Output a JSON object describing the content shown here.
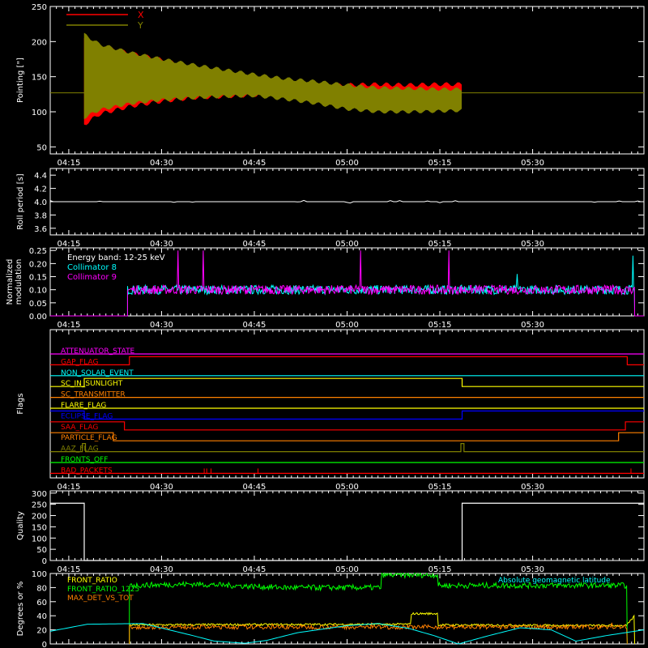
{
  "colors": {
    "background": "#000000",
    "axis": "#ffffff",
    "red": "#ff0000",
    "olive": "#808000",
    "cyan": "#00ffff",
    "magenta": "#ff00ff",
    "green": "#00ff00",
    "orange": "#ff8000",
    "yellow": "#ffff00",
    "blue": "#0000ff",
    "white": "#ffffff"
  },
  "time_axis": {
    "start_minutes": 252,
    "end_minutes": 348,
    "ticks": [
      {
        "m": 255,
        "label": "04:15"
      },
      {
        "m": 270,
        "label": "04:30"
      },
      {
        "m": 285,
        "label": "04:45"
      },
      {
        "m": 300,
        "label": "05:00"
      },
      {
        "m": 315,
        "label": "05:15"
      },
      {
        "m": 330,
        "label": "05:30"
      }
    ]
  },
  "chart_data": [
    {
      "id": "pointing",
      "type": "area",
      "ylabel": "Pointing [\"]",
      "ylim": [
        40,
        250
      ],
      "yticks": [
        "50",
        "100",
        "150",
        "200",
        "250"
      ],
      "ytick_values": [
        50,
        100,
        150,
        200,
        250
      ],
      "baseline": 127,
      "legend": [
        {
          "name": "X",
          "color": "red"
        },
        {
          "name": "Y",
          "color": "olive"
        }
      ],
      "series": [
        {
          "name": "X",
          "color": "red",
          "x": [
            257.5,
            260,
            265,
            270,
            275,
            280,
            285,
            290,
            295,
            300,
            305,
            310,
            315,
            318.5
          ],
          "upper": [
            205,
            193,
            183,
            174,
            163,
            153,
            143,
            137,
            136,
            138,
            139,
            138,
            139,
            139
          ],
          "lower": [
            82,
            97,
            108,
            115,
            120,
            122,
            124,
            125,
            124,
            122,
            122,
            122,
            122,
            122
          ]
        },
        {
          "name": "Y",
          "color": "olive",
          "x": [
            257.5,
            260,
            265,
            270,
            275,
            280,
            285,
            290,
            295,
            300,
            305,
            310,
            315,
            318.5
          ],
          "upper": [
            210,
            196,
            184,
            175,
            167,
            160,
            153,
            147,
            143,
            138,
            134,
            133,
            132,
            132
          ],
          "lower": [
            92,
            103,
            112,
            117,
            120,
            122,
            123,
            118,
            112,
            104,
            100,
            100,
            101,
            102
          ]
        }
      ]
    },
    {
      "id": "roll",
      "type": "line",
      "ylabel": "Roll period [s]",
      "ylim": [
        3.5,
        4.5
      ],
      "yticks": [
        "3.6",
        "3.8",
        "4.0",
        "4.2",
        "4.4"
      ],
      "ytick_values": [
        3.6,
        3.8,
        4.0,
        4.2,
        4.4
      ],
      "series": [
        {
          "color": "white",
          "x": [
            252,
            348
          ],
          "y": [
            4.0,
            4.0
          ]
        }
      ]
    },
    {
      "id": "modulation",
      "type": "line",
      "ylabel": [
        "Normalized",
        "modulation"
      ],
      "ylim": [
        0,
        0.26
      ],
      "yticks": [
        "0.00",
        "0.05",
        "0.10",
        "0.15",
        "0.20",
        "0.25"
      ],
      "ytick_values": [
        0,
        0.05,
        0.1,
        0.15,
        0.2,
        0.25
      ],
      "annotation": "Energy band: 12-25 keV",
      "series": [
        {
          "name": "Collimator 8",
          "color": "cyan",
          "x_start": 264.5,
          "x_end": 346.5,
          "mean": 0.1,
          "spikes": [
            {
              "x": 327.5,
              "y": 0.16
            },
            {
              "x": 346.2,
              "y": 0.23
            }
          ]
        },
        {
          "name": "Collimator 9",
          "color": "magenta",
          "x_start": 264.5,
          "x_end": 346.5,
          "mean": 0.1,
          "spikes": [
            {
              "x": 272.7,
              "y": 0.25
            },
            {
              "x": 276.8,
              "y": 0.25
            },
            {
              "x": 302.2,
              "y": 0.25
            },
            {
              "x": 316.5,
              "y": 0.25
            }
          ]
        }
      ]
    },
    {
      "id": "flags",
      "type": "line",
      "ylabel": "Flags",
      "series": [
        {
          "name": "ATTENUATOR_STATE",
          "color": "magenta",
          "levels": [
            [
              252,
              0
            ],
            [
              348,
              0
            ]
          ]
        },
        {
          "name": "GAP_FLAG",
          "color": "red",
          "levels": [
            [
              252,
              0
            ],
            [
              264.8,
              1
            ],
            [
              345.3,
              0
            ]
          ]
        },
        {
          "name": "NON_SOLAR_EVENT",
          "color": "cyan",
          "levels": [
            [
              252,
              0
            ],
            [
              348,
              0
            ]
          ]
        },
        {
          "name": "SC_IN_SUNLIGHT",
          "color": "yellow",
          "levels": [
            [
              252,
              0
            ],
            [
              257.5,
              1
            ],
            [
              318.6,
              0
            ]
          ]
        },
        {
          "name": "SC_TRANSMITTER",
          "color": "orange",
          "levels": [
            [
              252,
              0
            ],
            [
              348,
              0
            ]
          ]
        },
        {
          "name": "FLARE_FLAG",
          "color": "yellow",
          "levels": [
            [
              252,
              0
            ],
            [
              348,
              0
            ]
          ]
        },
        {
          "name": "ECLIPSE_FLAG",
          "color": "blue",
          "levels": [
            [
              252,
              1
            ],
            [
              257.5,
              0
            ],
            [
              318.6,
              1
            ]
          ]
        },
        {
          "name": "SAA_FLAG",
          "color": "red",
          "levels": [
            [
              252,
              1
            ],
            [
              264.0,
              0
            ],
            [
              345.0,
              1
            ]
          ]
        },
        {
          "name": "PARTICLE_FLAG",
          "color": "orange",
          "levels": [
            [
              252,
              1
            ],
            [
              262.2,
              0
            ],
            [
              343.9,
              1
            ]
          ]
        },
        {
          "name": "AAZ_FLAG",
          "color": "olive",
          "levels": [
            [
              252,
              0
            ],
            [
              257.2,
              1
            ],
            [
              257.7,
              0
            ],
            [
              318.4,
              1
            ],
            [
              318.9,
              0
            ]
          ]
        },
        {
          "name": "FRONTS_OFF",
          "color": "green",
          "levels": [
            [
              252,
              0
            ],
            [
              348,
              0
            ]
          ]
        },
        {
          "name": "BAD_PACKETS",
          "color": "red",
          "levels": [
            [
              252,
              0
            ],
            [
              348,
              0
            ]
          ],
          "spikes": [
            276.9,
            277.3,
            278.0,
            285.6,
            345.9
          ]
        }
      ]
    },
    {
      "id": "quality",
      "type": "line",
      "ylabel": "Quality",
      "ylim": [
        0,
        310
      ],
      "yticks": [
        "0",
        "50",
        "100",
        "150",
        "200",
        "250",
        "300"
      ],
      "ytick_values": [
        0,
        50,
        100,
        150,
        200,
        250,
        300
      ],
      "series": [
        {
          "color": "white",
          "levels": [
            [
              252,
              255
            ],
            [
              257.5,
              0
            ],
            [
              318.6,
              255
            ]
          ]
        }
      ]
    },
    {
      "id": "ratios",
      "type": "line",
      "ylabel": "Degrees or %",
      "ylim": [
        0,
        100
      ],
      "yticks": [
        "0",
        "20",
        "40",
        "60",
        "80",
        "100"
      ],
      "ytick_values": [
        0,
        20,
        40,
        60,
        80,
        100
      ],
      "series": [
        {
          "name": "FRONT_RATIO",
          "color": "yellow",
          "x": [
            264.8,
            310.3,
            310.3,
            314.6,
            314.6,
            345.2,
            346.5
          ],
          "y": [
            27,
            28,
            43,
            43,
            27,
            26,
            40
          ]
        },
        {
          "name": "FRONT_RATIO_1225",
          "color": "green",
          "x": [
            264.8,
            275,
            290,
            305.5,
            305.5,
            314.6,
            314.6,
            330,
            345.3
          ],
          "y": [
            83,
            85,
            80,
            80,
            98,
            98,
            83,
            83,
            83
          ]
        },
        {
          "name": "MAX_DET_VS_TOT",
          "color": "orange",
          "x": [
            264.8,
            345.3
          ],
          "y": [
            24,
            24
          ]
        },
        {
          "name": "Absolute geomagnetic latitude",
          "color": "cyan",
          "x": [
            252,
            258,
            267,
            275,
            278.5,
            283.5,
            287,
            292,
            300,
            305,
            310,
            314,
            318,
            323,
            328,
            333,
            337,
            342,
            348
          ],
          "y": [
            18,
            28,
            29,
            12,
            4,
            1,
            5,
            16,
            26,
            29,
            22,
            12,
            0,
            12,
            23,
            20,
            4,
            12,
            20
          ]
        }
      ]
    }
  ]
}
